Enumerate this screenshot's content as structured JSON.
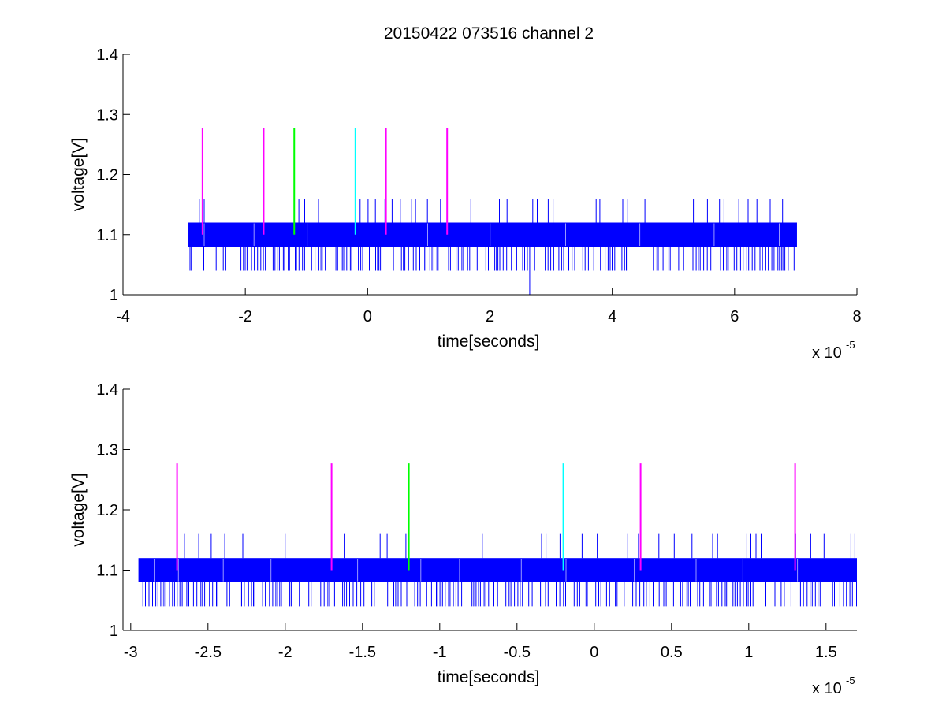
{
  "figure": {
    "title": "20150422 073516 channel 2",
    "background": "#ffffff"
  },
  "chart_data": [
    {
      "type": "line",
      "title": "20150422 073516 channel 2",
      "xlabel": "time[seconds]",
      "ylabel": "voltage[V]",
      "x_exponent_label": "x 10",
      "x_exponent_power": "-5",
      "xlim": [
        -4,
        8
      ],
      "ylim": [
        1,
        1.4
      ],
      "xticks": [
        -4,
        -2,
        0,
        2,
        4,
        6,
        8
      ],
      "xtick_labels": [
        "-4",
        "-2",
        "0",
        "2",
        "4",
        "6",
        "8"
      ],
      "yticks": [
        1,
        1.1,
        1.2,
        1.3,
        1.4
      ],
      "ytick_labels": [
        "1",
        "1.1",
        "1.2",
        "1.3",
        "1.4"
      ],
      "grid": false,
      "legend": "none",
      "series": [
        {
          "kind": "noise-band",
          "color": "#0000ff",
          "x_range": [
            -2.93,
            7.02
          ],
          "band_low": 1.08,
          "band_high": 1.12,
          "spike_low": 1.04,
          "spike_high": 1.16,
          "outlier_x": 2.65,
          "outlier_y": 1.0
        }
      ],
      "markers": [
        {
          "x": -2.7,
          "y0": 1.1,
          "y1": 1.277,
          "color": "#ff00ff"
        },
        {
          "x": -1.7,
          "y0": 1.1,
          "y1": 1.277,
          "color": "#ff00ff"
        },
        {
          "x": -1.2,
          "y0": 1.1,
          "y1": 1.277,
          "color": "#00ff00"
        },
        {
          "x": -0.2,
          "y0": 1.1,
          "y1": 1.277,
          "color": "#00ffff"
        },
        {
          "x": 0.3,
          "y0": 1.1,
          "y1": 1.277,
          "color": "#ff00ff"
        },
        {
          "x": 1.3,
          "y0": 1.1,
          "y1": 1.277,
          "color": "#ff00ff"
        }
      ]
    },
    {
      "type": "line",
      "title": "",
      "xlabel": "time[seconds]",
      "ylabel": "voltage[V]",
      "x_exponent_label": "x 10",
      "x_exponent_power": "-5",
      "xlim": [
        -3.05,
        1.7
      ],
      "ylim": [
        1,
        1.4
      ],
      "xticks": [
        -3,
        -2.5,
        -2,
        -1.5,
        -1,
        -0.5,
        0,
        0.5,
        1,
        1.5
      ],
      "xtick_labels": [
        "-3",
        "-2.5",
        "-2",
        "-1.5",
        "-1",
        "-0.5",
        "0",
        "0.5",
        "1",
        "1.5"
      ],
      "yticks": [
        1,
        1.1,
        1.2,
        1.3,
        1.4
      ],
      "ytick_labels": [
        "1",
        "1.1",
        "1.2",
        "1.3",
        "1.4"
      ],
      "grid": false,
      "legend": "none",
      "series": [
        {
          "kind": "noise-band",
          "color": "#0000ff",
          "x_range": [
            -2.95,
            1.7
          ],
          "band_low": 1.08,
          "band_high": 1.12,
          "spike_low": 1.04,
          "spike_high": 1.16
        }
      ],
      "markers": [
        {
          "x": -2.7,
          "y0": 1.1,
          "y1": 1.277,
          "color": "#ff00ff"
        },
        {
          "x": -1.7,
          "y0": 1.1,
          "y1": 1.277,
          "color": "#ff00ff"
        },
        {
          "x": -1.2,
          "y0": 1.1,
          "y1": 1.277,
          "color": "#00ff00"
        },
        {
          "x": -0.2,
          "y0": 1.1,
          "y1": 1.277,
          "color": "#00ffff"
        },
        {
          "x": 0.3,
          "y0": 1.1,
          "y1": 1.277,
          "color": "#ff00ff"
        },
        {
          "x": 1.3,
          "y0": 1.1,
          "y1": 1.277,
          "color": "#ff00ff"
        }
      ]
    }
  ]
}
